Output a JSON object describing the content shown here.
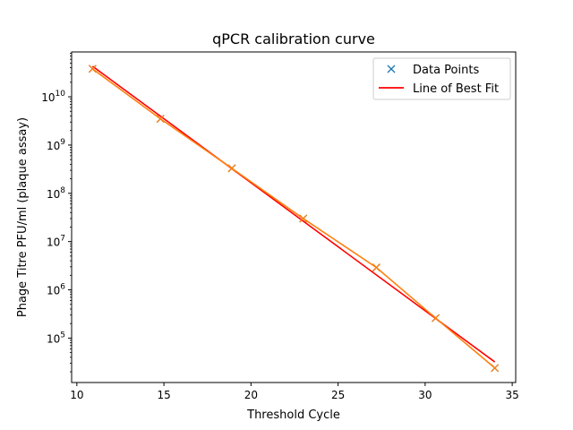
{
  "chart_data": {
    "type": "line",
    "title": "qPCR calibration curve",
    "xlabel": "Threshold Cycle",
    "ylabel": "Phage Titre PFU/ml (plaque assay)",
    "xlim": [
      9.7,
      35.2
    ],
    "ylim": [
      12000,
      85000000000
    ],
    "yscale": "log",
    "x_ticks": [
      10,
      15,
      20,
      25,
      30,
      35
    ],
    "y_ticks": [
      {
        "value": 100000,
        "base": "10",
        "exp": "5"
      },
      {
        "value": 1000000,
        "base": "10",
        "exp": "6"
      },
      {
        "value": 10000000,
        "base": "10",
        "exp": "7"
      },
      {
        "value": 100000000,
        "base": "10",
        "exp": "8"
      },
      {
        "value": 1000000000,
        "base": "10",
        "exp": "9"
      },
      {
        "value": 10000000000,
        "base": "10",
        "exp": "10"
      }
    ],
    "grid": false,
    "legend_position": "top-right",
    "series": [
      {
        "name": "Data Points",
        "style": "marker-x",
        "color": "#1f77b4",
        "x": [
          10.9,
          14.8,
          18.9,
          23.0,
          27.2,
          30.6,
          34.0
        ],
        "y": [
          38000000000,
          3500000000,
          330000000,
          30000000,
          2900000,
          260000,
          24000
        ]
      },
      {
        "name": "Line of Best Fit",
        "style": "line",
        "color": "#ff0000",
        "x": [
          10.9,
          34.0
        ],
        "y": [
          43000000000,
          32000
        ]
      },
      {
        "style": "line-x",
        "color": "#ff7f0e",
        "x": [
          10.9,
          14.8,
          18.9,
          23.0,
          27.2,
          30.6,
          34.0
        ],
        "y": [
          38000000000,
          3500000000,
          330000000,
          30000000,
          2900000,
          260000,
          24000
        ]
      }
    ]
  }
}
